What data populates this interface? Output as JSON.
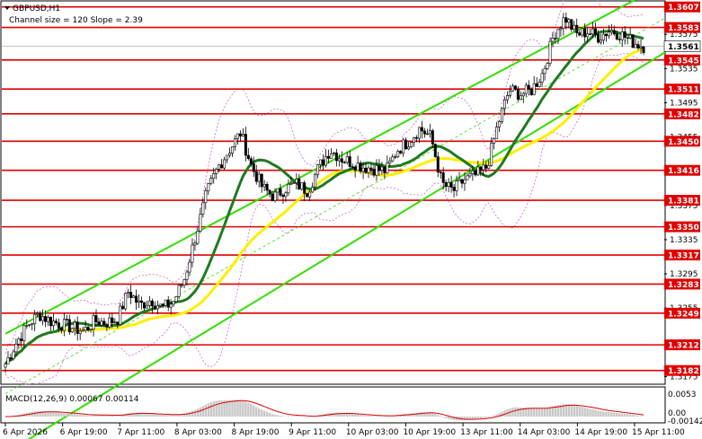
{
  "header": {
    "symbol": "GBPUSD,H1",
    "channel_info": "Channel size = 120 Slope = 2.39"
  },
  "macd": {
    "label": "MACD(12,26,9) 0.00067 0.00114",
    "ticks": [
      "0.0053",
      "0.00",
      "-0.00142"
    ]
  },
  "colors": {
    "level_line": "#e00000",
    "level_box": "#e00000",
    "channel": "#33dd00",
    "ma_fast": "#1f7a1f",
    "ma_slow": "#ffee00",
    "bollinger": "#cc66cc",
    "candles": "#000000",
    "macd_hist": "#c8c8c8",
    "macd_signal": "#e00000"
  },
  "chart_data": {
    "type": "candlestick",
    "title": "GBPUSD,H1",
    "ylim": [
      1.3167,
      1.3613
    ],
    "y_ticks": [
      "1.3575",
      "1.3535",
      "1.3495",
      "1.3455",
      "1.3415",
      "1.3375",
      "1.3335",
      "1.3295",
      "1.3255",
      "1.3215",
      "1.3175"
    ],
    "levels": [
      "1.3607",
      "1.3583",
      "1.3545",
      "1.3511",
      "1.3482",
      "1.3450",
      "1.3416",
      "1.3381",
      "1.3350",
      "1.3317",
      "1.3283",
      "1.3249",
      "1.3212",
      "1.3182"
    ],
    "current_price": "1.3561",
    "x_labels": [
      "6 Apr 2026",
      "6 Apr 19:00",
      "7 Apr 11:00",
      "8 Apr 03:00",
      "8 Apr 19:00",
      "9 Apr 11:00",
      "10 Apr 03:00",
      "10 Apr 19:00",
      "13 Apr 11:00",
      "14 Apr 03:00",
      "14 Apr 19:00",
      "15 Apr 11:00"
    ],
    "close_path": [
      1.319,
      1.3215,
      1.3235,
      1.3248,
      1.324,
      1.3236,
      1.3232,
      1.3228,
      1.324,
      1.3238,
      1.3242,
      1.3275,
      1.3258,
      1.3265,
      1.3255,
      1.3262,
      1.329,
      1.334,
      1.339,
      1.342,
      1.344,
      1.346,
      1.342,
      1.3395,
      1.3385,
      1.3395,
      1.34,
      1.3392,
      1.342,
      1.344,
      1.343,
      1.3425,
      1.342,
      1.3418,
      1.3415,
      1.344,
      1.345,
      1.3465,
      1.3455,
      1.34,
      1.3392,
      1.3405,
      1.341,
      1.342,
      1.347,
      1.351,
      1.3505,
      1.351,
      1.353,
      1.3575,
      1.3595,
      1.3575,
      1.3578,
      1.3572,
      1.358,
      1.3575,
      1.3566,
      1.3561
    ],
    "channel_info": "Channel size = 120 Slope = 2.39"
  }
}
